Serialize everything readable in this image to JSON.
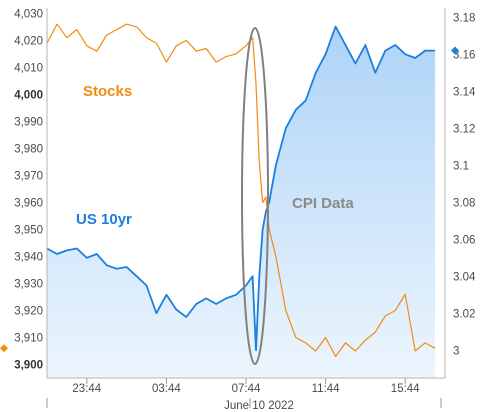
{
  "chart_data": {
    "type": "line",
    "xlabel": "June 10 2022",
    "x_ticks": [
      "23:44",
      "03:44",
      "07:44",
      "11:44",
      "15:44"
    ],
    "left_axis": {
      "ylim": [
        3895,
        4032
      ],
      "ticks": [
        "3,900",
        "3,910",
        "3,920",
        "3,930",
        "3,940",
        "3,950",
        "3,960",
        "3,970",
        "3,980",
        "3,990",
        "4,000",
        "4,010",
        "4,020",
        "4,030"
      ],
      "bold_ticks": [
        "3,900",
        "4,000"
      ]
    },
    "right_axis": {
      "ylim": [
        2.985,
        3.185
      ],
      "ticks": [
        "3",
        "3.02",
        "3.04",
        "3.06",
        "3.08",
        "3.1",
        "3.12",
        "3.14",
        "3.16",
        "3.18"
      ]
    },
    "series": [
      {
        "name": "Stocks",
        "axis": "left",
        "color": "#f28c0f",
        "x": [
          "21:44",
          "22:14",
          "22:44",
          "23:14",
          "23:44",
          "00:14",
          "00:44",
          "01:14",
          "01:44",
          "02:14",
          "02:44",
          "03:14",
          "03:44",
          "04:14",
          "04:44",
          "05:14",
          "05:44",
          "06:14",
          "06:44",
          "07:14",
          "07:44",
          "08:04",
          "08:14",
          "08:24",
          "08:34",
          "08:44",
          "08:54",
          "09:14",
          "09:44",
          "10:14",
          "10:44",
          "11:14",
          "11:44",
          "12:14",
          "12:44",
          "13:14",
          "13:44",
          "14:14",
          "14:44",
          "15:14",
          "15:44",
          "16:14",
          "16:44",
          "17:14"
        ],
        "y": [
          4019,
          4026,
          4021,
          4024,
          4018,
          4016,
          4022,
          4024,
          4026,
          4025,
          4021,
          4019,
          4012,
          4018,
          4020,
          4016,
          4017,
          4012,
          4014,
          4015,
          4018,
          4021,
          4004,
          3975,
          3960,
          3962,
          3950,
          3940,
          3920,
          3910,
          3908,
          3905,
          3910,
          3903,
          3908,
          3905,
          3909,
          3912,
          3918,
          3920,
          3926,
          3905,
          3908,
          3906
        ]
      },
      {
        "name": "US 10yr",
        "axis": "right",
        "color": "#1a7fe0",
        "x": [
          "21:44",
          "22:14",
          "22:44",
          "23:14",
          "23:44",
          "00:14",
          "00:44",
          "01:14",
          "01:44",
          "02:14",
          "02:44",
          "03:14",
          "03:44",
          "04:14",
          "04:44",
          "05:14",
          "05:44",
          "06:14",
          "06:44",
          "07:14",
          "07:44",
          "08:04",
          "08:14",
          "08:24",
          "08:34",
          "08:44",
          "08:54",
          "09:14",
          "09:44",
          "10:14",
          "10:44",
          "11:14",
          "11:44",
          "12:14",
          "12:44",
          "13:14",
          "13:44",
          "14:14",
          "14:44",
          "15:14",
          "15:44",
          "16:14",
          "16:44",
          "17:14"
        ],
        "y": [
          3.055,
          3.052,
          3.054,
          3.055,
          3.05,
          3.052,
          3.046,
          3.044,
          3.045,
          3.04,
          3.035,
          3.02,
          3.03,
          3.022,
          3.018,
          3.025,
          3.028,
          3.025,
          3.028,
          3.03,
          3.035,
          3.04,
          3.0,
          3.04,
          3.065,
          3.075,
          3.08,
          3.1,
          3.12,
          3.13,
          3.135,
          3.15,
          3.16,
          3.175,
          3.165,
          3.155,
          3.165,
          3.15,
          3.162,
          3.165,
          3.16,
          3.158,
          3.162,
          3.162
        ]
      }
    ],
    "annotation": "CPI Data",
    "grid": false,
    "legend": "inline labels"
  }
}
